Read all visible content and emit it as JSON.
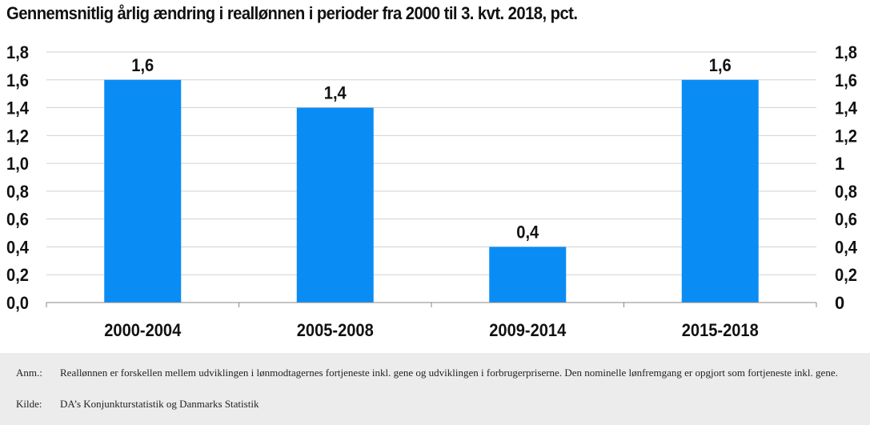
{
  "title": "Gennemsnitlig årlig ændring i reallønnen i perioder fra 2000 til 3. kvt. 2018, pct.",
  "colors": {
    "bar": "#0a8cf5",
    "grid": "#d2d2d2",
    "axis": "#888888",
    "notes_bg": "#ececec"
  },
  "chart_data": {
    "type": "bar",
    "title": "Gennemsnitlig årlig ændring i reallønnen i perioder fra 2000 til 3. kvt. 2018, pct.",
    "categories": [
      "2000-2004",
      "2005-2008",
      "2009-2014",
      "2015-2018"
    ],
    "values": [
      1.6,
      1.4,
      0.4,
      1.6
    ],
    "data_labels": [
      "1,6",
      "1,4",
      "0,4",
      "1,6"
    ],
    "ylim": [
      0,
      1.8
    ],
    "left_ticks": [
      "0,0",
      "0,2",
      "0,4",
      "0,6",
      "0,8",
      "1,0",
      "1,2",
      "1,4",
      "1,6",
      "1,8"
    ],
    "right_ticks": [
      "0",
      "0,2",
      "0,4",
      "0,6",
      "0,8",
      "1",
      "1,2",
      "1,4",
      "1,6",
      "1,8"
    ],
    "grid": true,
    "xlabel": "",
    "ylabel": ""
  },
  "notes": {
    "anm_label": "Anm.:",
    "anm_text": "Reallønnen er forskellen mellem udviklingen i lønmodtagernes fortjeneste inkl. gene og udviklingen i forbrugerpriserne. Den nominelle lønfremgang er opgjort som fortjeneste inkl. gene.",
    "kilde_label": "Kilde:",
    "kilde_text": "DA’s Konjunkturstatistik og Danmarks Statistik"
  }
}
